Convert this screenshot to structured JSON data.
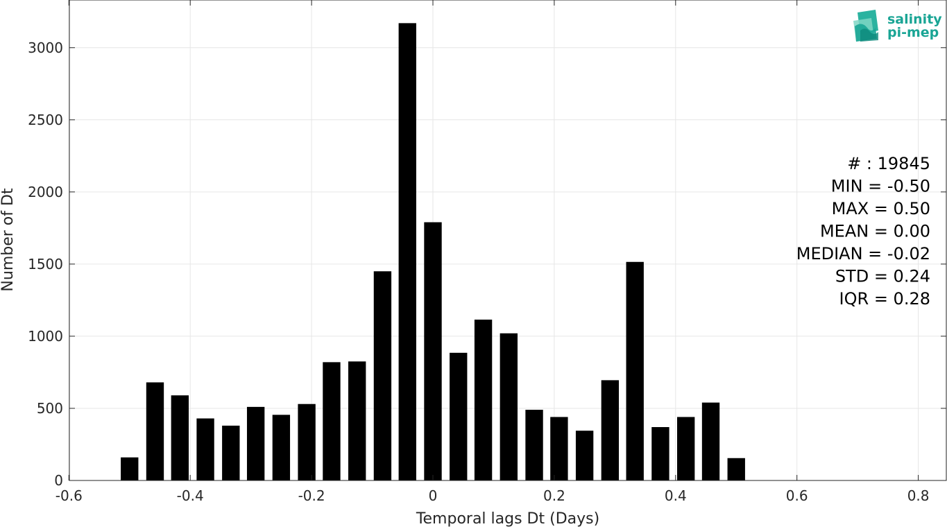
{
  "chart_data": {
    "type": "bar",
    "title": "",
    "xlabel": "Temporal lags Dt (Days)",
    "ylabel": "Number of Dt",
    "xlim": [
      -0.6,
      0.85
    ],
    "ylim": [
      0,
      3350
    ],
    "xticks": [
      -0.6,
      -0.4,
      -0.2,
      0,
      0.2,
      0.4,
      0.6,
      0.8
    ],
    "xtick_labels": [
      "-0.6",
      "-0.4",
      "-0.2",
      "0",
      "0.2",
      "0.4",
      "0.6",
      "0.8"
    ],
    "yticks": [
      0,
      500,
      1000,
      1500,
      2000,
      2500,
      3000
    ],
    "ytick_labels": [
      "0",
      "500",
      "1000",
      "1500",
      "2000",
      "2500",
      "3000"
    ],
    "grid": true,
    "bar_width": 0.029,
    "bar_color": "#000000",
    "bars": [
      {
        "x": -0.5,
        "value": 160
      },
      {
        "x": -0.458,
        "value": 680
      },
      {
        "x": -0.417,
        "value": 590
      },
      {
        "x": -0.375,
        "value": 430
      },
      {
        "x": -0.333,
        "value": 380
      },
      {
        "x": -0.292,
        "value": 510
      },
      {
        "x": -0.25,
        "value": 455
      },
      {
        "x": -0.208,
        "value": 530
      },
      {
        "x": -0.167,
        "value": 820
      },
      {
        "x": -0.125,
        "value": 825
      },
      {
        "x": -0.083,
        "value": 1450
      },
      {
        "x": -0.042,
        "value": 3170
      },
      {
        "x": 0.0,
        "value": 1790
      },
      {
        "x": 0.042,
        "value": 885
      },
      {
        "x": 0.083,
        "value": 1115
      },
      {
        "x": 0.125,
        "value": 1020
      },
      {
        "x": 0.167,
        "value": 490
      },
      {
        "x": 0.208,
        "value": 440
      },
      {
        "x": 0.25,
        "value": 345
      },
      {
        "x": 0.292,
        "value": 695
      },
      {
        "x": 0.333,
        "value": 1515
      },
      {
        "x": 0.375,
        "value": 370
      },
      {
        "x": 0.417,
        "value": 440
      },
      {
        "x": 0.458,
        "value": 540
      },
      {
        "x": 0.5,
        "value": 155
      }
    ],
    "annotations": [
      "# : 19845",
      "MIN = -0.50",
      "MAX =  0.50",
      "MEAN = 0.00",
      "MEDIAN = -0.02",
      "STD = 0.24",
      "IQR = 0.28"
    ]
  },
  "logo": {
    "line1": "salinity",
    "line2": "pi-mep",
    "color": "#1aa595"
  }
}
